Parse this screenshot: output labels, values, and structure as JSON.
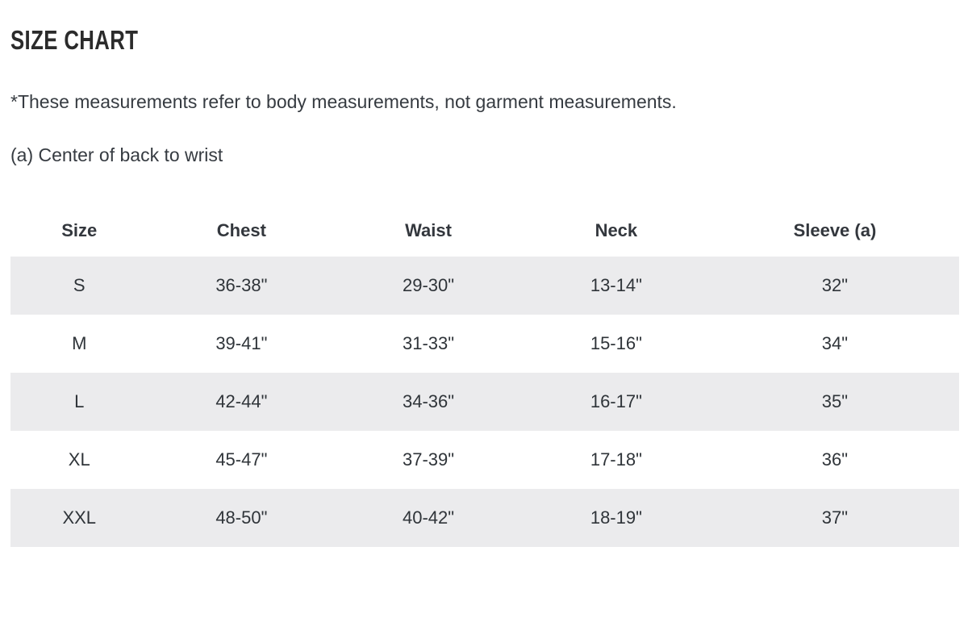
{
  "page": {
    "title": "SIZE CHART",
    "note": "*These measurements refer to body measurements, not garment measurements.",
    "sleeve_note": "(a) Center of back to wrist"
  },
  "colors": {
    "stripe": "#ebebed",
    "text": "#363b41",
    "title": "#2b2b2b"
  },
  "chart_data": {
    "type": "table",
    "columns": [
      "Size",
      "Chest",
      "Waist",
      "Neck",
      "Sleeve (a)"
    ],
    "rows": [
      [
        "S",
        "36-38\"",
        "29-30\"",
        "13-14\"",
        "32\""
      ],
      [
        "M",
        "39-41\"",
        "31-33\"",
        "15-16\"",
        "34\""
      ],
      [
        "L",
        "42-44\"",
        "34-36\"",
        "16-17\"",
        "35\""
      ],
      [
        "XL",
        "45-47\"",
        "37-39\"",
        "17-18\"",
        "36\""
      ],
      [
        "XXL",
        "48-50\"",
        "40-42\"",
        "18-19\"",
        "37\""
      ]
    ]
  }
}
